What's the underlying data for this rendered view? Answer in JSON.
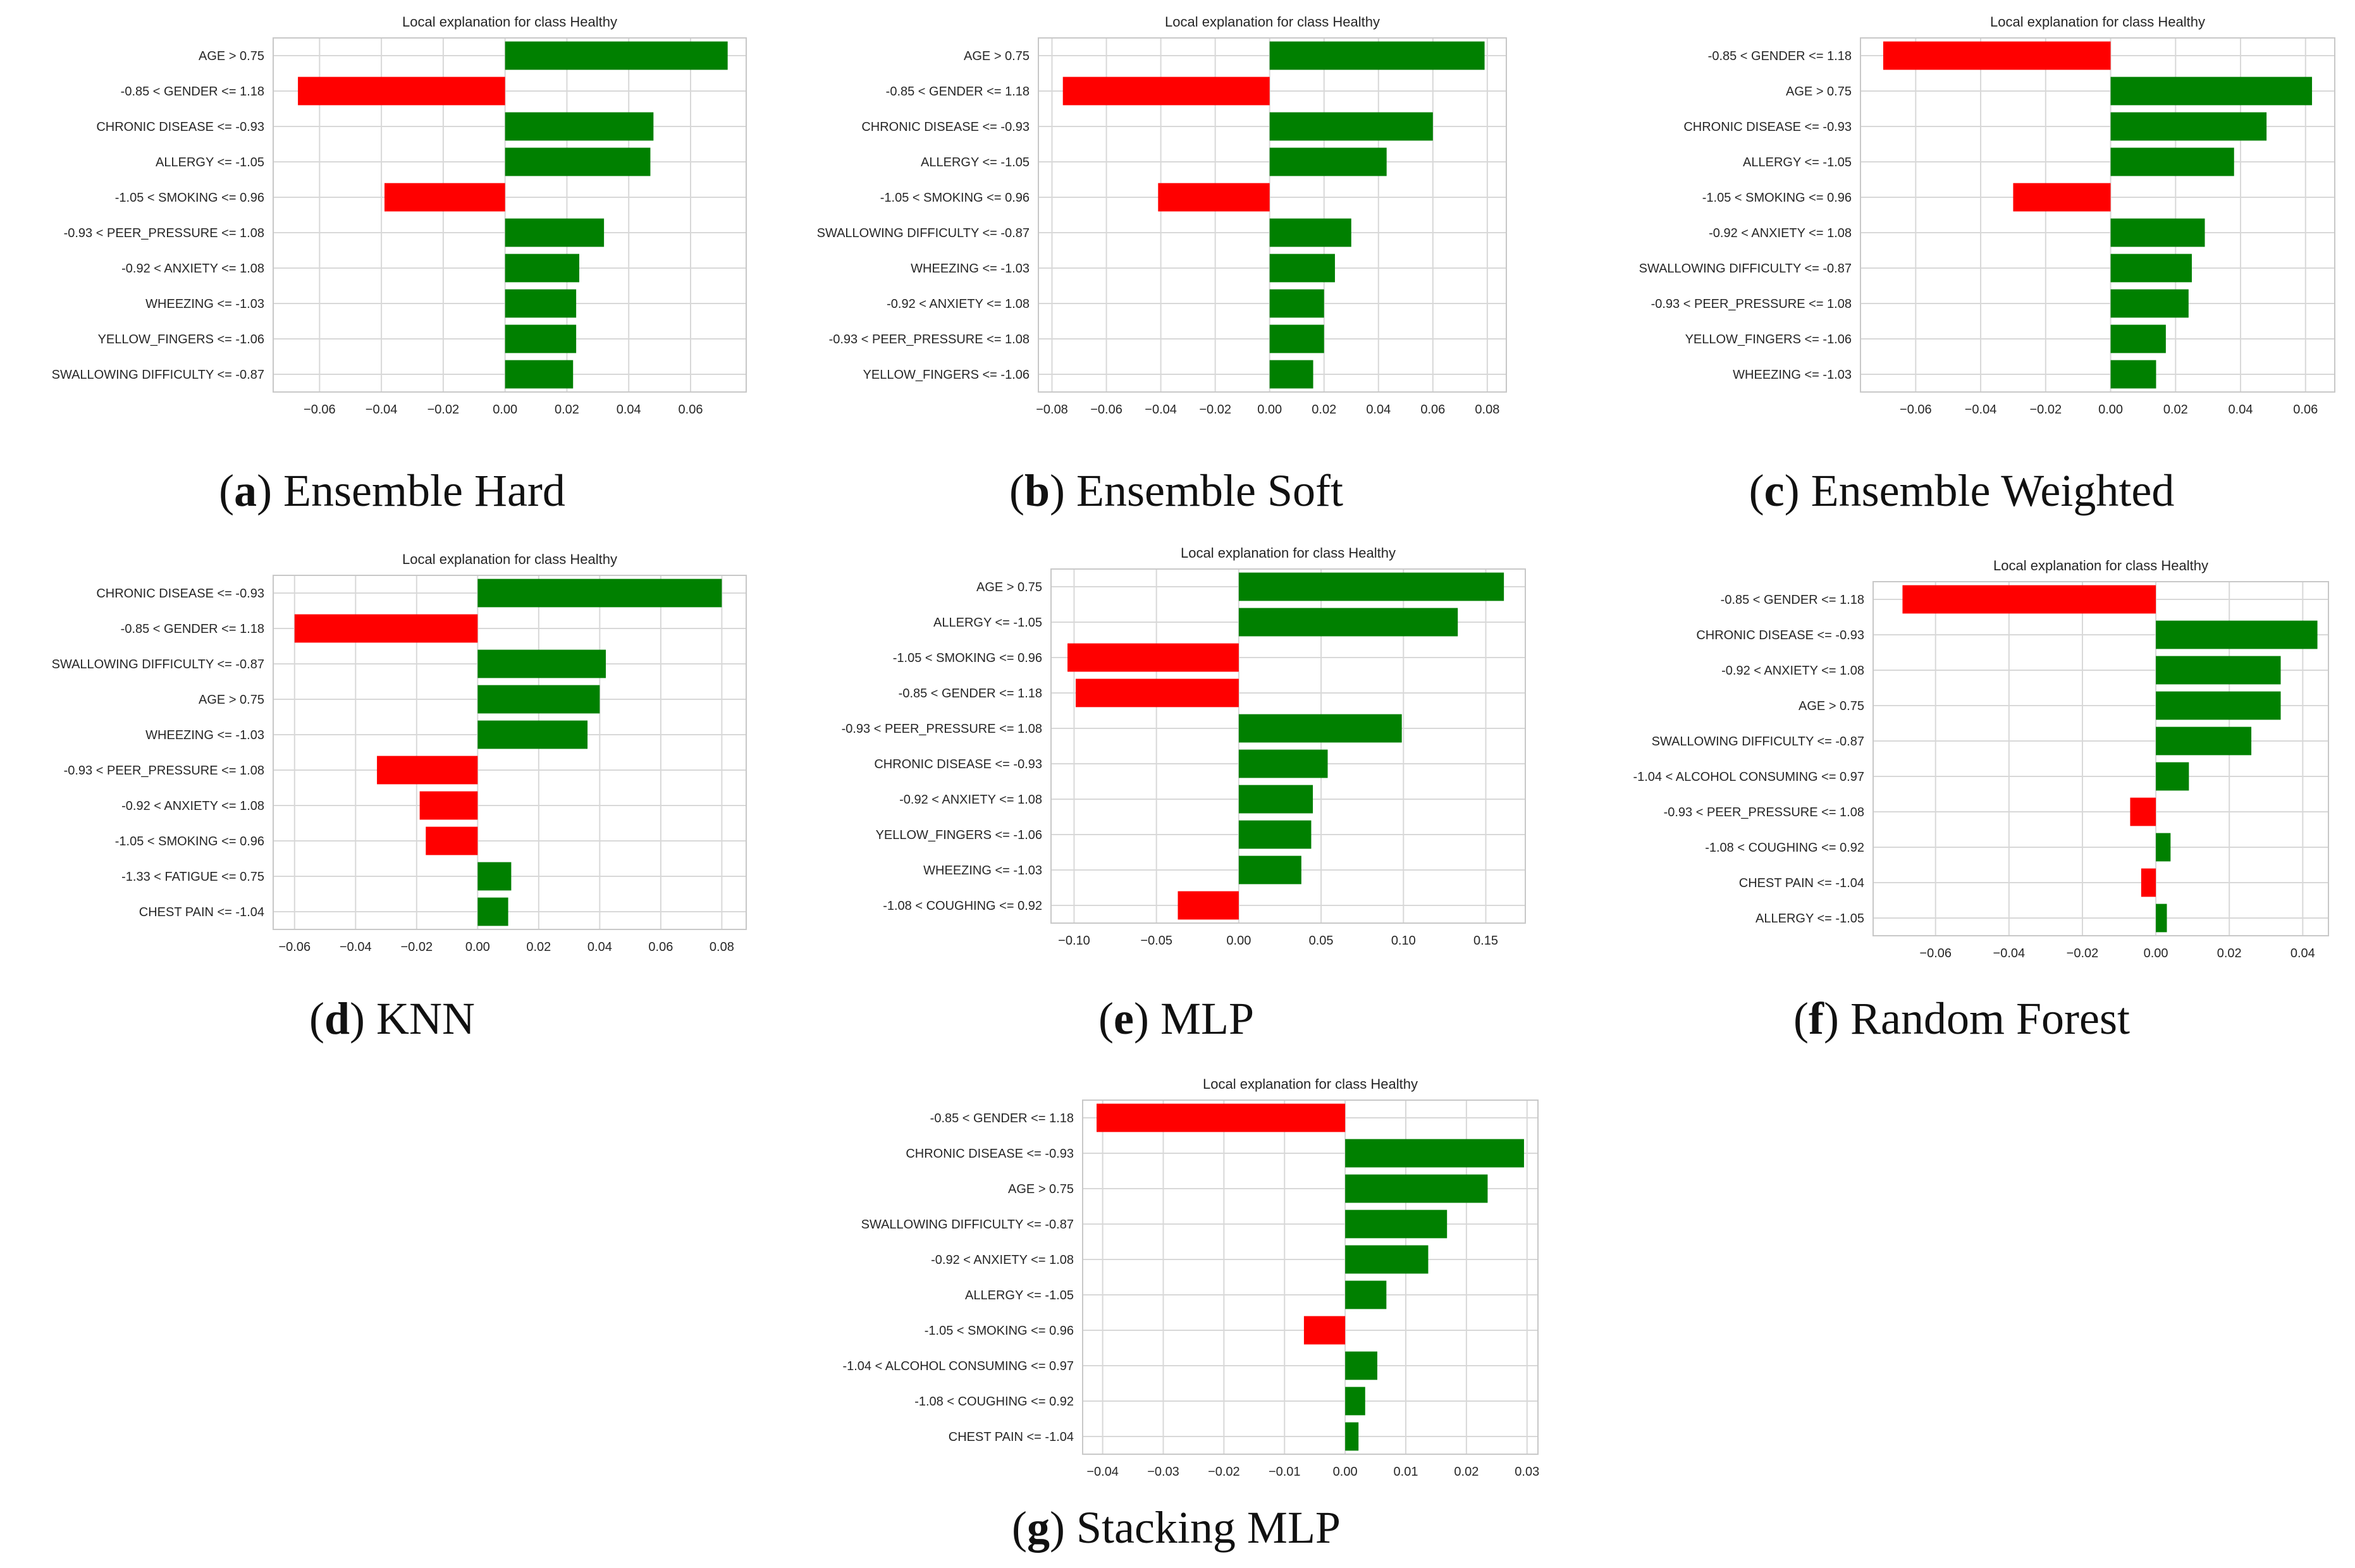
{
  "colors": {
    "positive": "#008000",
    "negative": "#ff0000",
    "grid": "#d8d8d8",
    "axes": "#c8c8c8",
    "text": "#262626"
  },
  "panels": [
    {
      "letter": "a",
      "label": "Ensemble Hard"
    },
    {
      "letter": "b",
      "label": "Ensemble Soft"
    },
    {
      "letter": "c",
      "label": "Ensemble Weighted"
    },
    {
      "letter": "d",
      "label": "KNN"
    },
    {
      "letter": "e",
      "label": "MLP"
    },
    {
      "letter": "f",
      "label": "Random Forest"
    },
    {
      "letter": "g",
      "label": "Stacking MLP"
    }
  ],
  "chart_data": [
    {
      "type": "bar",
      "orientation": "horizontal",
      "title": "Local explanation for class Healthy",
      "categories": [
        "AGE > 0.75",
        "-0.85 < GENDER <= 1.18",
        "CHRONIC DISEASE <= -0.93",
        "ALLERGY  <= -1.05",
        "-1.05 < SMOKING <= 0.96",
        "-0.93 < PEER_PRESSURE <= 1.08",
        "-0.92 < ANXIETY <= 1.08",
        "WHEEZING <= -1.03",
        "YELLOW_FINGERS <= -1.06",
        "SWALLOWING DIFFICULTY <= -0.87"
      ],
      "values": [
        0.072,
        -0.067,
        0.048,
        0.047,
        -0.039,
        0.032,
        0.024,
        0.023,
        0.023,
        0.022
      ],
      "xlim": [
        -0.075,
        0.078
      ],
      "xticks": [
        -0.06,
        -0.04,
        -0.02,
        0.0,
        0.02,
        0.04,
        0.06
      ],
      "xtick_labels": [
        "−0.06",
        "−0.04",
        "−0.02",
        "0.00",
        "0.02",
        "0.04",
        "0.06"
      ]
    },
    {
      "type": "bar",
      "orientation": "horizontal",
      "title": "Local explanation for class Healthy",
      "categories": [
        "AGE > 0.75",
        "-0.85 < GENDER <= 1.18",
        "CHRONIC DISEASE <= -0.93",
        "ALLERGY  <= -1.05",
        "-1.05 < SMOKING <= 0.96",
        "SWALLOWING DIFFICULTY <= -0.87",
        "WHEEZING <= -1.03",
        "-0.92 < ANXIETY <= 1.08",
        "-0.93 < PEER_PRESSURE <= 1.08",
        "YELLOW_FINGERS <= -1.06"
      ],
      "values": [
        0.079,
        -0.076,
        0.06,
        0.043,
        -0.041,
        0.03,
        0.024,
        0.02,
        0.02,
        0.016
      ],
      "xlim": [
        -0.085,
        0.087
      ],
      "xticks": [
        -0.08,
        -0.06,
        -0.04,
        -0.02,
        0.0,
        0.02,
        0.04,
        0.06,
        0.08
      ],
      "xtick_labels": [
        "−0.08",
        "−0.06",
        "−0.04",
        "−0.02",
        "0.00",
        "0.02",
        "0.04",
        "0.06",
        "0.08"
      ]
    },
    {
      "type": "bar",
      "orientation": "horizontal",
      "title": "Local explanation for class Healthy",
      "categories": [
        "-0.85 < GENDER <= 1.18",
        "AGE > 0.75",
        "CHRONIC DISEASE <= -0.93",
        "ALLERGY  <= -1.05",
        "-1.05 < SMOKING <= 0.96",
        "-0.92 < ANXIETY <= 1.08",
        "SWALLOWING DIFFICULTY <= -0.87",
        "-0.93 < PEER_PRESSURE <= 1.08",
        "YELLOW_FINGERS <= -1.06",
        "WHEEZING <= -1.03"
      ],
      "values": [
        -0.07,
        0.062,
        0.048,
        0.038,
        -0.03,
        0.029,
        0.025,
        0.024,
        0.017,
        0.014
      ],
      "xlim": [
        -0.077,
        0.069
      ],
      "xticks": [
        -0.06,
        -0.04,
        -0.02,
        0.0,
        0.02,
        0.04,
        0.06
      ],
      "xtick_labels": [
        "−0.06",
        "−0.04",
        "−0.02",
        "0.00",
        "0.02",
        "0.04",
        "0.06"
      ]
    },
    {
      "type": "bar",
      "orientation": "horizontal",
      "title": "Local explanation for class Healthy",
      "categories": [
        "CHRONIC DISEASE <= -0.93",
        "-0.85 < GENDER <= 1.18",
        "SWALLOWING DIFFICULTY <= -0.87",
        "AGE > 0.75",
        "WHEEZING <= -1.03",
        "-0.93 < PEER_PRESSURE <= 1.08",
        "-0.92 < ANXIETY <= 1.08",
        "-1.05 < SMOKING <= 0.96",
        "-1.33 < FATIGUE  <= 0.75",
        "CHEST PAIN <= -1.04"
      ],
      "values": [
        0.08,
        -0.06,
        0.042,
        0.04,
        0.036,
        -0.033,
        -0.019,
        -0.017,
        0.011,
        0.01
      ],
      "xlim": [
        -0.067,
        0.088
      ],
      "xticks": [
        -0.06,
        -0.04,
        -0.02,
        0.0,
        0.02,
        0.04,
        0.06,
        0.08
      ],
      "xtick_labels": [
        "−0.06",
        "−0.04",
        "−0.02",
        "0.00",
        "0.02",
        "0.04",
        "0.06",
        "0.08"
      ]
    },
    {
      "type": "bar",
      "orientation": "horizontal",
      "title": "Local explanation for class Healthy",
      "categories": [
        "AGE > 0.75",
        "ALLERGY  <= -1.05",
        "-1.05 < SMOKING <= 0.96",
        "-0.85 < GENDER <= 1.18",
        "-0.93 < PEER_PRESSURE <= 1.08",
        "CHRONIC DISEASE <= -0.93",
        "-0.92 < ANXIETY <= 1.08",
        "YELLOW_FINGERS <= -1.06",
        "WHEEZING <= -1.03",
        "-1.08 < COUGHING <= 0.92"
      ],
      "values": [
        0.161,
        0.133,
        -0.104,
        -0.099,
        0.099,
        0.054,
        0.045,
        0.044,
        0.038,
        -0.037
      ],
      "xlim": [
        -0.114,
        0.174
      ],
      "xticks": [
        -0.1,
        -0.05,
        0.0,
        0.05,
        0.1,
        0.15
      ],
      "xtick_labels": [
        "−0.10",
        "−0.05",
        "0.00",
        "0.05",
        "0.10",
        "0.15"
      ]
    },
    {
      "type": "bar",
      "orientation": "horizontal",
      "title": "Local explanation for class Healthy",
      "categories": [
        "-0.85 < GENDER <= 1.18",
        "CHRONIC DISEASE <= -0.93",
        "-0.92 < ANXIETY <= 1.08",
        "AGE > 0.75",
        "SWALLOWING DIFFICULTY <= -0.87",
        "-1.04 < ALCOHOL CONSUMING <= 0.97",
        "-0.93 < PEER_PRESSURE <= 1.08",
        "-1.08 < COUGHING <= 0.92",
        "CHEST PAIN <= -1.04",
        "ALLERGY  <= -1.05"
      ],
      "values": [
        -0.069,
        0.044,
        0.034,
        0.034,
        0.026,
        0.009,
        -0.007,
        0.004,
        -0.004,
        0.003
      ],
      "xlim": [
        -0.077,
        0.047
      ],
      "xticks": [
        -0.06,
        -0.04,
        -0.02,
        0.0,
        0.02,
        0.04
      ],
      "xtick_labels": [
        "−0.06",
        "−0.04",
        "−0.02",
        "0.00",
        "0.02",
        "0.04"
      ]
    },
    {
      "type": "bar",
      "orientation": "horizontal",
      "title": "Local explanation for class Healthy",
      "categories": [
        "-0.85 < GENDER <= 1.18",
        "CHRONIC DISEASE <= -0.93",
        "AGE > 0.75",
        "SWALLOWING DIFFICULTY <= -0.87",
        "-0.92 < ANXIETY <= 1.08",
        "ALLERGY  <= -1.05",
        "-1.05 < SMOKING <= 0.96",
        "-1.04 < ALCOHOL CONSUMING <= 0.97",
        "-1.08 < COUGHING <= 0.92",
        "CHEST PAIN <= -1.04"
      ],
      "values": [
        -0.041,
        0.0295,
        0.0235,
        0.0168,
        0.0137,
        0.0068,
        -0.0068,
        0.0053,
        0.0033,
        0.0022
      ],
      "xlim": [
        -0.0433,
        0.0318
      ],
      "xticks": [
        -0.04,
        -0.03,
        -0.02,
        -0.01,
        0.0,
        0.01,
        0.02,
        0.03
      ],
      "xtick_labels": [
        "−0.04",
        "−0.03",
        "−0.02",
        "−0.01",
        "0.00",
        "0.01",
        "0.02",
        "0.03"
      ]
    }
  ]
}
